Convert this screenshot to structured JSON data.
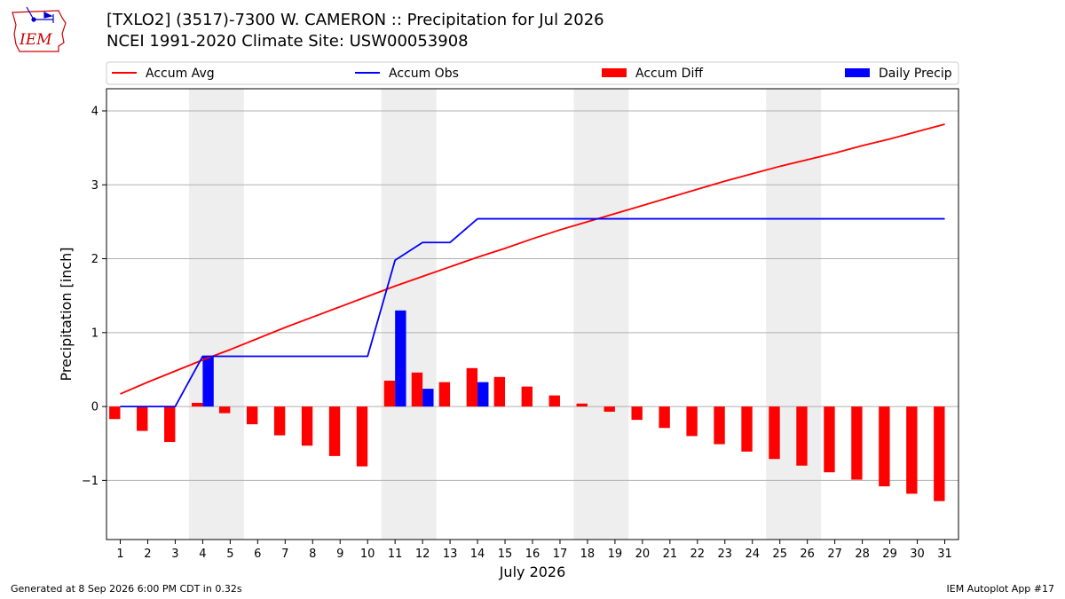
{
  "header": {
    "title_line1": "[TXLO2] (3517)-7300 W. CAMERON :: Precipitation for Jul 2026",
    "title_line2": "NCEI 1991-2020 Climate Site: USW00053908"
  },
  "logo": {
    "text": "IEM",
    "icon": "iem-iowa-map-logo"
  },
  "footer": {
    "generated": "Generated at 8 Sep 2026 6:00 PM CDT in 0.32s",
    "app": "IEM Autoplot App #17"
  },
  "colors": {
    "accum_avg": "#ff0000",
    "accum_obs": "#0000ff",
    "accum_diff": "#ff0000",
    "daily_precip": "#0000ff",
    "weekend_band": "#eeeeee",
    "grid": "#b0b0b0"
  },
  "chart_data": {
    "type": "bar",
    "xlabel": "July 2026",
    "ylabel": "Precipitation [inch]",
    "ylim": [
      -1.8,
      4.3
    ],
    "y_ticks": [
      -1,
      0,
      1,
      2,
      3,
      4
    ],
    "y_tick_labels": [
      "−1",
      "0",
      "1",
      "2",
      "3",
      "4"
    ],
    "grid": true,
    "legend_position": "top",
    "weekend_bands": [
      [
        4,
        5
      ],
      [
        11,
        12
      ],
      [
        18,
        19
      ],
      [
        25,
        26
      ]
    ],
    "x": [
      1,
      2,
      3,
      4,
      5,
      6,
      7,
      8,
      9,
      10,
      11,
      12,
      13,
      14,
      15,
      16,
      17,
      18,
      19,
      20,
      21,
      22,
      23,
      24,
      25,
      26,
      27,
      28,
      29,
      30,
      31
    ],
    "x_tick_labels": [
      "1",
      "2",
      "3",
      "4",
      "5",
      "6",
      "7",
      "8",
      "9",
      "10",
      "11",
      "12",
      "13",
      "14",
      "15",
      "16",
      "17",
      "18",
      "19",
      "20",
      "21",
      "22",
      "23",
      "24",
      "25",
      "26",
      "27",
      "28",
      "29",
      "30",
      "31"
    ],
    "series": [
      {
        "name": "Accum Avg",
        "kind": "line",
        "color": "#ff0000",
        "values": [
          0.17,
          0.33,
          0.48,
          0.63,
          0.77,
          0.92,
          1.07,
          1.21,
          1.35,
          1.49,
          1.63,
          1.76,
          1.89,
          2.02,
          2.14,
          2.27,
          2.39,
          2.5,
          2.61,
          2.72,
          2.83,
          2.94,
          3.05,
          3.15,
          3.25,
          3.34,
          3.43,
          3.53,
          3.62,
          3.72,
          3.82
        ]
      },
      {
        "name": "Accum Obs",
        "kind": "line",
        "color": "#0000ff",
        "values": [
          0,
          0,
          0,
          0.68,
          0.68,
          0.68,
          0.68,
          0.68,
          0.68,
          0.68,
          1.98,
          2.22,
          2.22,
          2.54,
          2.54,
          2.54,
          2.54,
          2.54,
          2.54,
          2.54,
          2.54,
          2.54,
          2.54,
          2.54,
          2.54,
          2.54,
          2.54,
          2.54,
          2.54,
          2.54,
          2.54
        ]
      },
      {
        "name": "Accum Diff",
        "kind": "bar",
        "color": "#ff0000",
        "values": [
          -0.17,
          -0.33,
          -0.48,
          0.05,
          -0.09,
          -0.24,
          -0.39,
          -0.53,
          -0.67,
          -0.81,
          0.35,
          0.46,
          0.33,
          0.52,
          0.4,
          0.27,
          0.15,
          0.04,
          -0.07,
          -0.18,
          -0.29,
          -0.4,
          -0.51,
          -0.61,
          -0.71,
          -0.8,
          -0.89,
          -0.99,
          -1.08,
          -1.18,
          -1.28
        ]
      },
      {
        "name": "Daily Precip",
        "kind": "bar",
        "color": "#0000ff",
        "values": [
          0,
          0,
          0,
          0.68,
          0,
          0,
          0,
          0,
          0,
          0,
          1.3,
          0.24,
          0,
          0.33,
          0,
          0,
          0,
          0,
          0,
          0,
          0,
          0,
          0,
          0,
          0,
          0,
          0,
          0,
          0,
          0,
          0
        ]
      }
    ]
  }
}
